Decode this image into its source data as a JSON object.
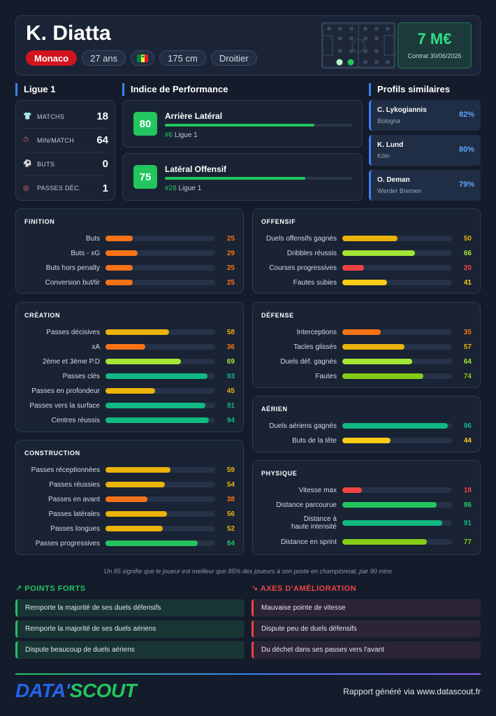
{
  "player": {
    "name": "K. Diatta",
    "club": "Monaco",
    "age": "27 ans",
    "height": "175 cm",
    "foot": "Droitier",
    "flag_colors": [
      "#00853f",
      "#fdef42",
      "#e31b23"
    ]
  },
  "value": {
    "amount": "7 M€",
    "contract": "Contrat 30/06/2026"
  },
  "league_section": {
    "title": "Ligue 1",
    "stats": [
      {
        "icon": "shirt-icon",
        "glyph": "👕",
        "label": "MATCHS",
        "value": "18"
      },
      {
        "icon": "stopwatch-icon",
        "glyph": "⏱",
        "label": "MIN/MATCH",
        "value": "64"
      },
      {
        "icon": "ball-icon",
        "glyph": "⚽",
        "label": "BUTS",
        "value": "0"
      },
      {
        "icon": "target-icon",
        "glyph": "◎",
        "label": "PASSES DÉC.",
        "value": "1"
      }
    ]
  },
  "performance": {
    "title": "Indice de Performance",
    "items": [
      {
        "score": "80",
        "role": "Arrière Latéral",
        "rank": "#6",
        "league": "Ligue 1",
        "fraction": 0.8
      },
      {
        "score": "75",
        "role": "Latéral Offensif",
        "rank": "#28",
        "league": "Ligue 1",
        "fraction": 0.75
      }
    ]
  },
  "similar": {
    "title": "Profils similaires",
    "items": [
      {
        "name": "C. Lykogiannis",
        "club": "Bologna",
        "pct": "82%"
      },
      {
        "name": "K. Lund",
        "club": "Köln",
        "pct": "80%"
      },
      {
        "name": "O. Deman",
        "club": "Werder Bremen",
        "pct": "79%"
      }
    ]
  },
  "metrics": {
    "finition": {
      "title": "FINITION",
      "rows": [
        {
          "label": "Buts",
          "value": 25
        },
        {
          "label": "Buts - xG",
          "value": 29
        },
        {
          "label": "Buts hors penalty",
          "value": 25
        },
        {
          "label": "Conversion but/tir",
          "value": 25
        }
      ]
    },
    "creation": {
      "title": "CRÉATION",
      "rows": [
        {
          "label": "Passes décisives",
          "value": 58
        },
        {
          "label": "xA",
          "value": 36
        },
        {
          "label": "2ème et 3ème P.D",
          "value": 69
        },
        {
          "label": "Passes clés",
          "value": 93
        },
        {
          "label": "Passes en profondeur",
          "value": 45
        },
        {
          "label": "Passes vers la surface",
          "value": 91
        },
        {
          "label": "Centres réussis",
          "value": 94
        }
      ]
    },
    "construction": {
      "title": "CONSTRUCTION",
      "rows": [
        {
          "label": "Passes réceptionnées",
          "value": 59
        },
        {
          "label": "Passes réussies",
          "value": 54
        },
        {
          "label": "Passes en avant",
          "value": 38
        },
        {
          "label": "Passes latérales",
          "value": 56
        },
        {
          "label": "Passes longues",
          "value": 52
        },
        {
          "label": "Passes progressives",
          "value": 84
        }
      ]
    },
    "offensif": {
      "title": "OFFENSIF",
      "rows": [
        {
          "label": "Duels offensifs gagnés",
          "value": 50
        },
        {
          "label": "Dribbles réussis",
          "value": 66
        },
        {
          "label": "Courses progressives",
          "value": 20
        },
        {
          "label": "Fautes subies",
          "value": 41
        }
      ]
    },
    "defense": {
      "title": "DÉFENSE",
      "rows": [
        {
          "label": "Interceptions",
          "value": 35
        },
        {
          "label": "Tacles glissés",
          "value": 57
        },
        {
          "label": "Duels déf. gagnés",
          "value": 64
        },
        {
          "label": "Fautes",
          "value": 74
        }
      ]
    },
    "aerien": {
      "title": "AÉRIEN",
      "rows": [
        {
          "label": "Duels aériens gagnés",
          "value": 96
        },
        {
          "label": "Buts de la tête",
          "value": 44
        }
      ]
    },
    "physique": {
      "title": "PHYSIQUE",
      "rows": [
        {
          "label": "Vitesse max",
          "value": 18
        },
        {
          "label": "Distance parcourue",
          "value": 86
        },
        {
          "label": "Distance à haute intensité",
          "value": 91
        },
        {
          "label": "Distance en sprint",
          "value": 77
        }
      ]
    }
  },
  "note": "Un 85 signifie que le joueur est meilleur que 85% des joueurs à son poste en championnat, par 90 mins",
  "strengths": {
    "title": "POINTS FORTS",
    "items": [
      "Remporte la majorité de ses duels défensifs",
      "Remporte la majorité de ses duels aériens",
      "Dispute beaucoup de duels aériens"
    ]
  },
  "weaknesses": {
    "title": "AXES D'AMÉLIORATION",
    "items": [
      "Mauvaise pointe de vitesse",
      "Dispute peu de duels défensifs",
      "Du déchet dans ses passes vers l'avant"
    ]
  },
  "colors": {
    "accent_green": "#22c55e",
    "accent_blue": "#3b82f6",
    "bad_red": "#ef4444",
    "scale": [
      "#ef4444",
      "#f97316",
      "#fb923c",
      "#facc15",
      "#eab308",
      "#a3e635",
      "#84cc16",
      "#22c55e",
      "#10b981"
    ]
  },
  "footer": {
    "logo_part1": "DATA'",
    "logo_part2": "SCOUT",
    "text": "Rapport généré via www.datascout.fr"
  }
}
